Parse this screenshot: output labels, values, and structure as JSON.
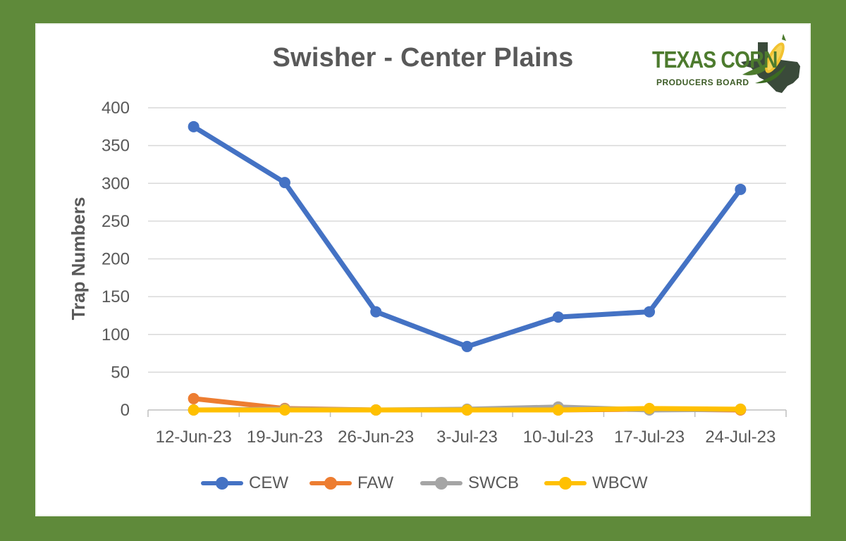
{
  "chart_data": {
    "type": "line",
    "title": "Swisher - Center Plains",
    "xlabel": "",
    "ylabel": "Trap Numbers",
    "ylim": [
      0,
      400
    ],
    "yticks": [
      0,
      50,
      100,
      150,
      200,
      250,
      300,
      350,
      400
    ],
    "categories": [
      "12-Jun-23",
      "19-Jun-23",
      "26-Jun-23",
      "3-Jul-23",
      "10-Jul-23",
      "17-Jul-23",
      "24-Jul-23"
    ],
    "grid": "horizontal",
    "legend_position": "bottom",
    "series": [
      {
        "name": "CEW",
        "color": "#4472c4",
        "values": [
          375,
          301,
          130,
          84,
          123,
          130,
          292
        ]
      },
      {
        "name": "FAW",
        "color": "#ed7d31",
        "values": [
          15,
          2,
          0,
          0,
          0,
          1,
          0
        ]
      },
      {
        "name": "SWCB",
        "color": "#a5a5a5",
        "values": [
          0,
          1,
          0,
          1,
          4,
          0,
          1
        ]
      },
      {
        "name": "WBCW",
        "color": "#ffc000",
        "values": [
          0,
          0,
          0,
          0,
          0,
          2,
          1
        ]
      }
    ]
  },
  "logo": {
    "main_text": "TEXAS CORN",
    "sub_text": "PRODUCERS BOARD"
  },
  "colors": {
    "border_green": "#5f8a3a",
    "grid": "#d9d9d9",
    "text": "#595959"
  }
}
